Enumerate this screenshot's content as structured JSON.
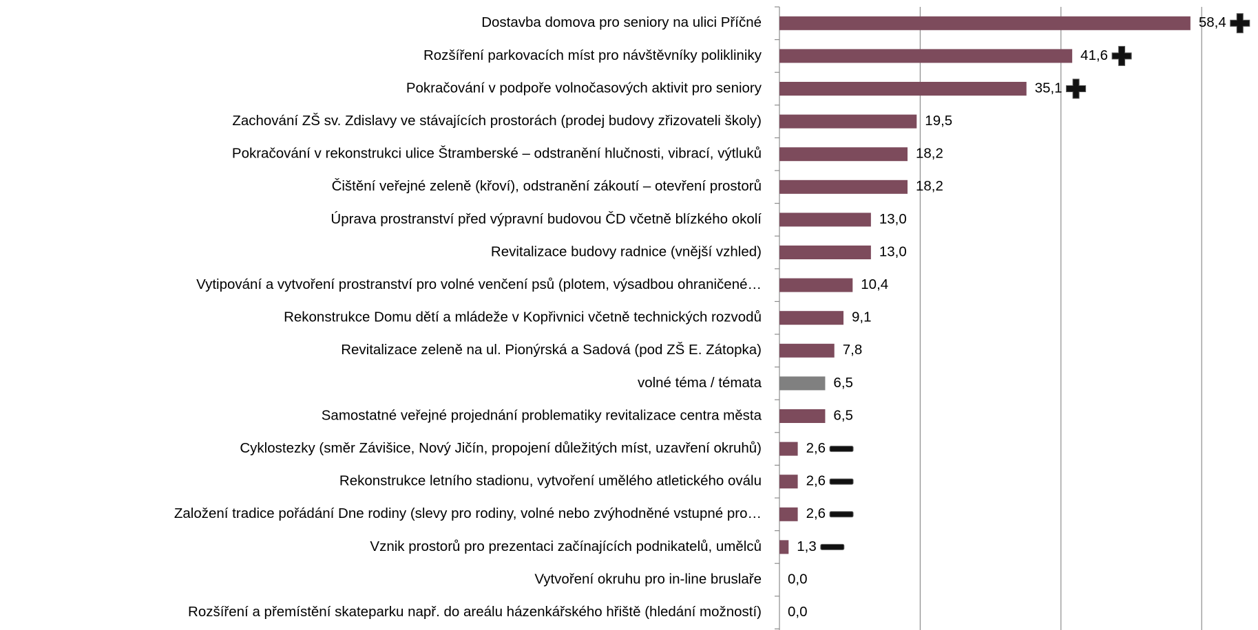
{
  "chart_data": {
    "type": "hbar",
    "categories": [
      "Dostavba domova pro seniory na ulici Příčné",
      "Rozšíření parkovacích míst pro návštěvníky polikliniky",
      "Pokračování v podpoře volnočasových aktivit pro seniory",
      "Zachování ZŠ sv. Zdislavy ve stávajících prostorách (prodej budovy zřizovateli školy)",
      "Pokračování v rekonstrukci ulice Štramberské – odstranění hlučnosti, vibrací, výtluků",
      "Čištění veřejné zeleně (křoví), odstranění zákoutí – otevření prostorů",
      "Úprava prostranství před výpravní budovou ČD včetně blízkého okolí",
      "Revitalizace budovy radnice (vnější vzhled)",
      "Vytipování a vytvoření prostranství pro volné venčení psů (plotem, výsadbou ohraničené…",
      "Rekonstrukce Domu dětí a mládeže v Kopřivnici včetně technických rozvodů",
      "Revitalizace zeleně na ul. Pionýrská a Sadová (pod ZŠ E. Zátopka)",
      "volné téma / témata",
      "Samostatné veřejné projednání problematiky revitalizace centra města",
      "Cyklostezky (směr Závišice, Nový Jičín, propojení důležitých míst, uzavření okruhů)",
      "Rekonstrukce letního stadionu, vytvoření umělého atletického oválu",
      "Založení tradice pořádání Dne rodiny (slevy pro rodiny, volné nebo zvýhodněné vstupné pro…",
      "Vznik prostorů pro prezentaci začínajících podnikatelů, umělců",
      "Vytvoření okruhu pro in-line bruslaře",
      "Rozšíření a přemístění skateparku např. do areálu házenkářského hřiště (hledání možností)"
    ],
    "values": [
      58.4,
      41.6,
      35.1,
      19.5,
      18.2,
      18.2,
      13.0,
      13.0,
      10.4,
      9.1,
      7.8,
      6.5,
      6.5,
      2.6,
      2.6,
      2.6,
      1.3,
      0.0,
      0.0
    ],
    "value_labels": [
      "58,4",
      "41,6",
      "35,1",
      "19,5",
      "18,2",
      "18,2",
      "13,0",
      "13,0",
      "10,4",
      "9,1",
      "7,8",
      "6,5",
      "6,5",
      "2,6",
      "2,6",
      "2,6",
      "1,3",
      "0,0",
      "0,0"
    ],
    "colors": [
      "#7d4b5c",
      "#7d4b5c",
      "#7d4b5c",
      "#7d4b5c",
      "#7d4b5c",
      "#7d4b5c",
      "#7d4b5c",
      "#7d4b5c",
      "#7d4b5c",
      "#7d4b5c",
      "#7d4b5c",
      "#808080",
      "#7d4b5c",
      "#7d4b5c",
      "#7d4b5c",
      "#7d4b5c",
      "#7d4b5c",
      "#7d4b5c",
      "#7d4b5c"
    ],
    "markers": [
      "plus",
      "plus",
      "plus",
      null,
      null,
      null,
      null,
      null,
      null,
      null,
      null,
      null,
      null,
      "minus",
      "minus",
      "minus",
      "minus",
      null,
      null
    ],
    "xlim": [
      0,
      68
    ],
    "xticks": [
      0,
      20,
      40,
      60
    ],
    "grid": true
  }
}
